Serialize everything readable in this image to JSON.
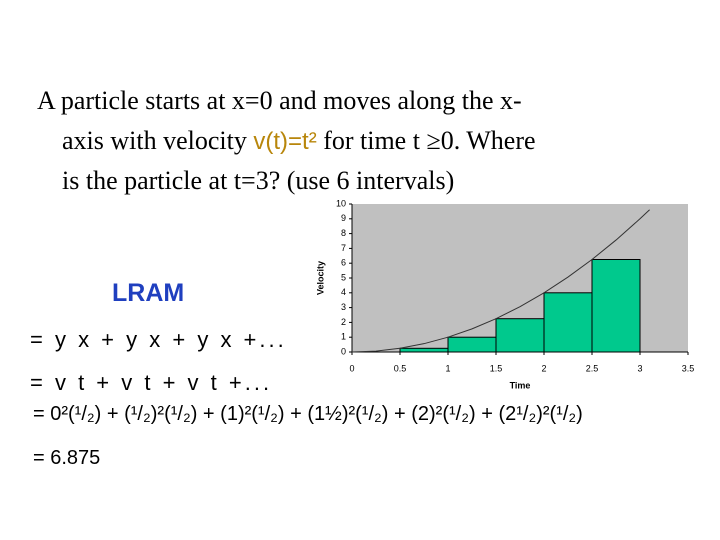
{
  "question": {
    "line1": "A particle starts at x=0 and moves along the x-",
    "line2_start": "axis with velocity ",
    "line2_formula": "v(t)=t²",
    "line2_end": " for time t ≥0.  Where",
    "line3": "is the particle at t=3? (use 6 intervals)"
  },
  "method": "LRAM",
  "steps": [
    "= y x + y x + y x +...",
    "= v t + v t + v t +...",
    "= 0²(¹/₂) + (¹/₂)²(¹/₂) + (1)²(¹/₂) + (1½)²(¹/₂) + (2)²(¹/₂) + (2¹/₂)²(¹/₂)",
    "= 6.875"
  ],
  "chart_data": {
    "type": "histogram",
    "xlabel": "Time",
    "ylabel": "Velocity",
    "bins": [
      0,
      0.5,
      1,
      1.5,
      2,
      2.5,
      3
    ],
    "counts": [
      0,
      0.25,
      1,
      2.25,
      4,
      6.25
    ],
    "color": "#00c98d",
    "background": "#c0c0c0",
    "curve": {
      "x": [
        0,
        0.25,
        0.5,
        0.75,
        1,
        1.25,
        1.5,
        1.75,
        2,
        2.25,
        2.5,
        2.75,
        3,
        3.1
      ],
      "values": [
        0,
        0.0625,
        0.25,
        0.5625,
        1,
        1.5625,
        2.25,
        3.0625,
        4,
        5.0625,
        6.25,
        7.5625,
        9,
        9.61
      ],
      "color": "#333333"
    },
    "xlim": [
      0,
      3.5
    ],
    "xticks": [
      0,
      0.5,
      1,
      1.5,
      2,
      2.5,
      3,
      3.5
    ],
    "ylim": [
      0,
      10
    ],
    "yticks": [
      0,
      1,
      2,
      3,
      4,
      5,
      6,
      7,
      8,
      9,
      10
    ]
  }
}
